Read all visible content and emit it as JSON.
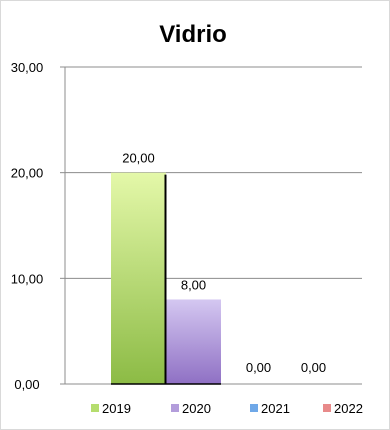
{
  "chart_data": {
    "type": "bar",
    "title": "Vidrio",
    "xlabel": "",
    "ylabel": "",
    "ylim": [
      0,
      30
    ],
    "yticks": [
      "0,00",
      "10,00",
      "20,00",
      "30,00"
    ],
    "grid": true,
    "legend_position": "bottom",
    "series": [
      {
        "name": "2019",
        "value": 20,
        "label": "20,00",
        "color": "#b5dd6e"
      },
      {
        "name": "2020",
        "value": 8,
        "label": "8,00",
        "color": "#b39ddb"
      },
      {
        "name": "2021",
        "value": 0,
        "label": "0,00",
        "color": "#6fa8e8"
      },
      {
        "name": "2022",
        "value": 0,
        "label": "0,00",
        "color": "#e88a8a"
      }
    ]
  }
}
